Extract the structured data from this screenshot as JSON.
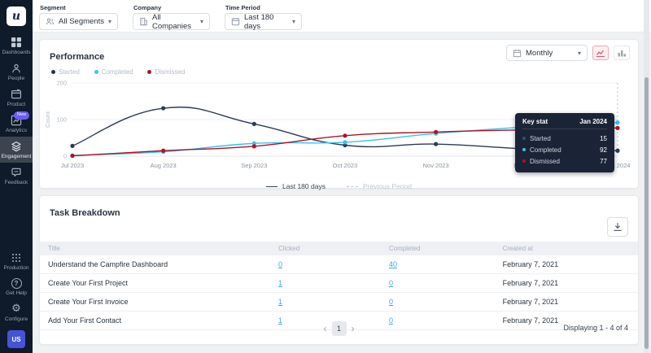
{
  "sidebar": {
    "logo": "u",
    "items": [
      {
        "label": "Dashboards",
        "icon": "dashboards-icon"
      },
      {
        "label": "People",
        "icon": "people-icon"
      },
      {
        "label": "Product",
        "icon": "product-icon"
      },
      {
        "label": "Analytics",
        "icon": "analytics-icon",
        "badge": "New"
      },
      {
        "label": "Engagement",
        "icon": "engagement-icon",
        "active": true
      },
      {
        "label": "Feedback",
        "icon": "feedback-icon"
      }
    ],
    "bottom_items": [
      {
        "label": "Production",
        "icon": "production-icon"
      },
      {
        "label": "Get Help",
        "icon": "help-icon"
      },
      {
        "label": "Configure",
        "icon": "configure-icon"
      }
    ],
    "avatar": "US",
    "badge_color": "#6c5cf6",
    "avatar_color": "#4553d8"
  },
  "filters": [
    {
      "label": "Segment",
      "value": "All Segments",
      "icon": "segment-icon"
    },
    {
      "label": "Company",
      "value": "All Companies",
      "icon": "company-icon"
    },
    {
      "label": "Time Period",
      "value": "Last 180 days",
      "icon": "calendar-icon"
    }
  ],
  "performance": {
    "title": "Performance",
    "granularity": "Monthly",
    "legend": [
      {
        "label": "Started",
        "color": "#223350"
      },
      {
        "label": "Completed",
        "color": "#36c3f2"
      },
      {
        "label": "Dismissed",
        "color": "#b01224"
      }
    ],
    "tooltip": {
      "header": "Key stat",
      "period": "Jan 2024",
      "rows": [
        {
          "label": "Started",
          "value": "15",
          "color": "#3a4a68"
        },
        {
          "label": "Completed",
          "value": "92",
          "color": "#36c3f2"
        },
        {
          "label": "Dismissed",
          "value": "77",
          "color": "#b01224"
        }
      ]
    },
    "bottom_legend": [
      {
        "label": "Last 180 days",
        "style": "solid"
      },
      {
        "label": "Previous Period",
        "style": "dashed"
      }
    ]
  },
  "chart_data": {
    "type": "line",
    "x": [
      "Jul 2023",
      "Aug 2023",
      "Sep 2023",
      "Oct 2023",
      "Nov 2023",
      "Dec 2023",
      "Jan 2024"
    ],
    "series": [
      {
        "name": "Started",
        "color": "#2b3a57",
        "values": [
          28,
          131,
          88,
          30,
          33,
          20,
          15
        ]
      },
      {
        "name": "Completed",
        "color": "#36c3f2",
        "values": [
          2,
          12,
          35,
          38,
          62,
          80,
          92
        ]
      },
      {
        "name": "Dismissed",
        "color": "#b01224",
        "values": [
          1,
          15,
          27,
          56,
          66,
          72,
          77
        ]
      }
    ],
    "ylabel": "Count",
    "yticks": [
      0,
      100,
      200
    ],
    "ylim": [
      0,
      200
    ],
    "grid": true,
    "hover_column": "Jan 2024",
    "legend_position": "bottom"
  },
  "table": {
    "title": "Task Breakdown",
    "columns": [
      "Title",
      "Clicked",
      "Completed",
      "Created at"
    ],
    "rows": [
      {
        "title": "Understand the Campfire Dashboard",
        "clicked": "0",
        "completed": "40",
        "created_at": "February 7, 2021"
      },
      {
        "title": "Create Your First Project",
        "clicked": "1",
        "completed": "0",
        "created_at": "February 7, 2021"
      },
      {
        "title": "Create Your First Invoice",
        "clicked": "1",
        "completed": "0",
        "created_at": "February 7, 2021"
      },
      {
        "title": "Add Your First Contact",
        "clicked": "1",
        "completed": "0",
        "created_at": "February 7, 2021"
      }
    ],
    "pagination": {
      "prev": "‹",
      "page": "1",
      "next": "›",
      "summary": "Displaying 1 - 4 of 4"
    }
  }
}
